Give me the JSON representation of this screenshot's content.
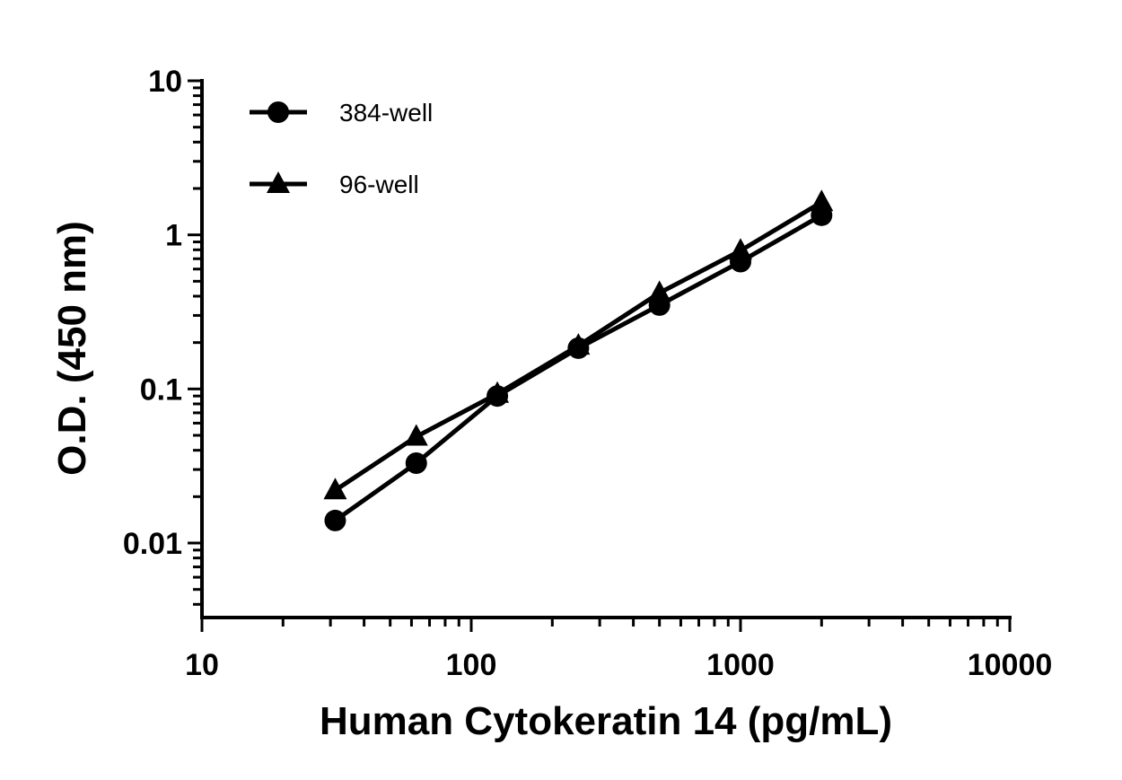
{
  "chart_data": {
    "type": "line",
    "title": "",
    "xlabel": "Human Cytokeratin 14 (pg/mL)",
    "ylabel": "O.D. (450 nm)",
    "xscale": "log",
    "yscale": "log",
    "xlim": [
      10,
      10000
    ],
    "ylim": [
      0.0033,
      10
    ],
    "xticks": [
      10,
      100,
      1000,
      10000
    ],
    "xtick_labels": [
      "10",
      "100",
      "1000",
      "10000"
    ],
    "yticks": [
      0.01,
      0.1,
      1,
      10
    ],
    "ytick_labels": [
      "0.01",
      "0.1",
      "1",
      "10"
    ],
    "grid": false,
    "legend_position": "top-left",
    "color": "#000000",
    "x": [
      31.25,
      62.5,
      125,
      250,
      500,
      1000,
      2000
    ],
    "series": [
      {
        "name": "384-well",
        "marker": "circle",
        "values": [
          0.014,
          0.033,
          0.09,
          0.184,
          0.35,
          0.67,
          1.34
        ]
      },
      {
        "name": "96-well",
        "marker": "triangle",
        "values": [
          0.022,
          0.049,
          0.093,
          0.191,
          0.42,
          0.79,
          1.63
        ]
      }
    ]
  }
}
